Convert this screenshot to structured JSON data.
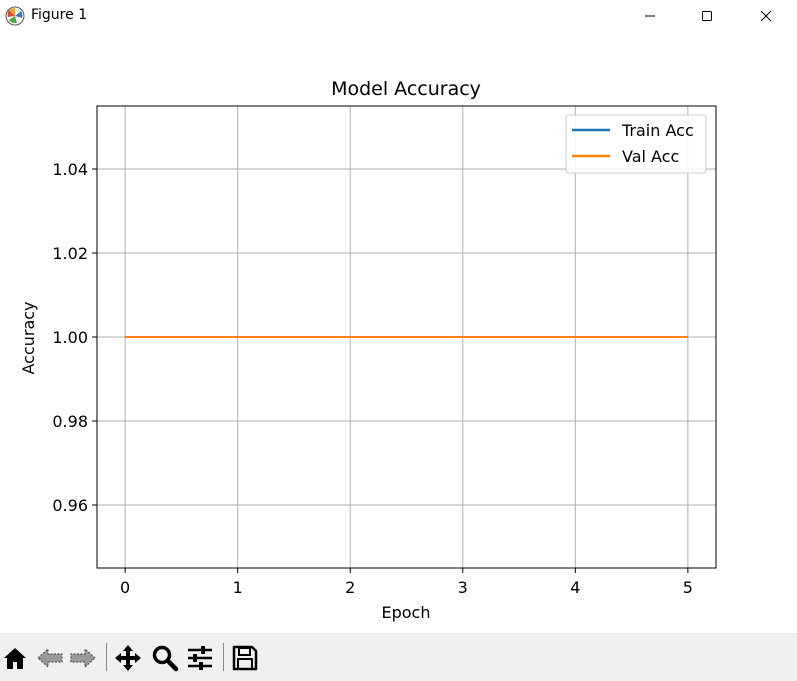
{
  "window": {
    "title": "Figure 1",
    "icon": "matplotlib-icon",
    "controls": [
      "minimize-icon",
      "maximize-icon",
      "close-icon"
    ]
  },
  "toolbar": {
    "buttons": [
      {
        "name": "home-button",
        "icon": "home-icon"
      },
      {
        "name": "back-button",
        "icon": "back-arrow-icon"
      },
      {
        "name": "forward-button",
        "icon": "forward-arrow-icon"
      },
      {
        "name": "pan-button",
        "icon": "move-icon"
      },
      {
        "name": "zoom-button",
        "icon": "search-icon"
      },
      {
        "name": "configure-subplots-button",
        "icon": "sliders-icon"
      },
      {
        "name": "save-button",
        "icon": "floppy-disk-icon"
      }
    ]
  },
  "chart_data": {
    "type": "line",
    "title": "Model Accuracy",
    "xlabel": "Epoch",
    "ylabel": "Accuracy",
    "x": [
      0,
      1,
      2,
      3,
      4,
      5
    ],
    "xlim": [
      -0.25,
      5.25
    ],
    "ylim": [
      0.945,
      1.055
    ],
    "xticks": [
      "0",
      "1",
      "2",
      "3",
      "4",
      "5"
    ],
    "yticks": [
      "0.96",
      "0.98",
      "1.00",
      "1.02",
      "1.04"
    ],
    "ytick_values": [
      0.96,
      0.98,
      1.0,
      1.02,
      1.04
    ],
    "grid": true,
    "legend_position": "top-right",
    "series": [
      {
        "name": "Train Acc",
        "color": "#1f77b4",
        "values": [
          1,
          1,
          1,
          1,
          1,
          1
        ]
      },
      {
        "name": "Val Acc",
        "color": "#ff7f0e",
        "values": [
          1,
          1,
          1,
          1,
          1,
          1
        ]
      }
    ]
  }
}
